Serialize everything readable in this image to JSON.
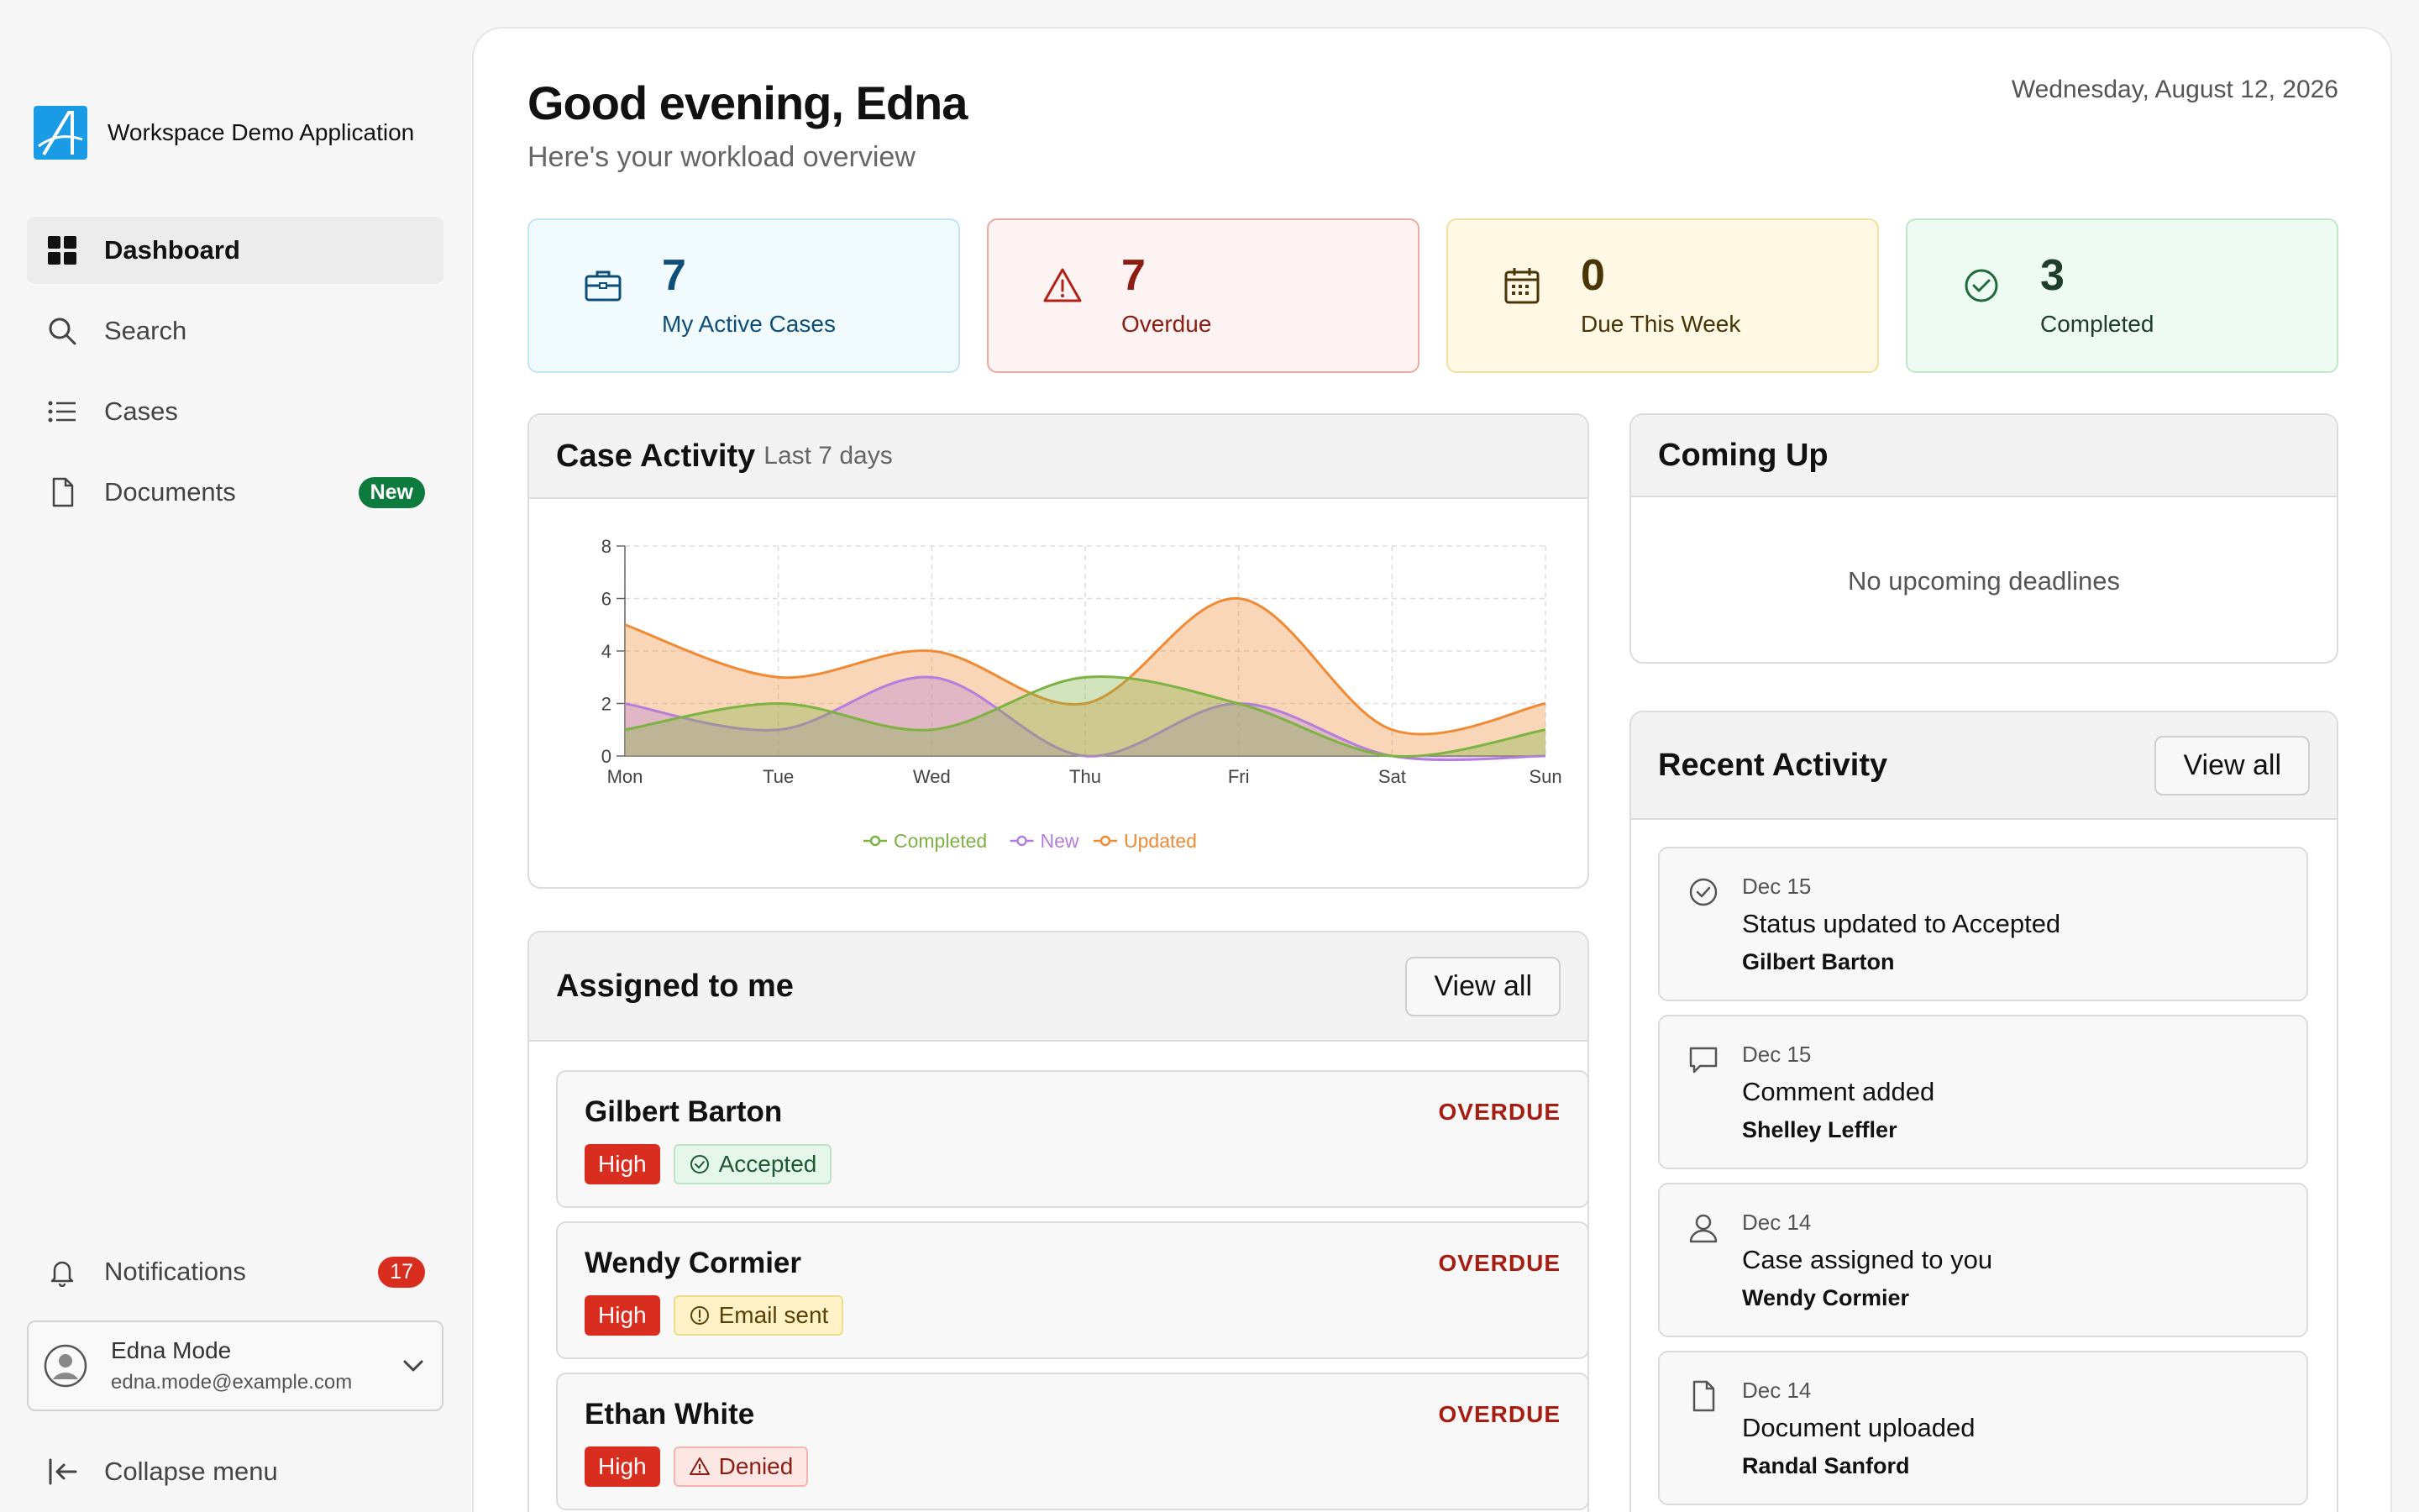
{
  "brand": {
    "name": "Workspace Demo Application"
  },
  "nav": [
    {
      "label": "Dashboard",
      "icon": "dashboard-icon"
    },
    {
      "label": "Search",
      "icon": "search-icon"
    },
    {
      "label": "Cases",
      "icon": "list-icon"
    },
    {
      "label": "Documents",
      "icon": "document-icon",
      "badge": "New"
    }
  ],
  "notifications": {
    "label": "Notifications",
    "count": "17"
  },
  "user": {
    "name": "Edna Mode",
    "email": "edna.mode@example.com"
  },
  "collapse_label": "Collapse menu",
  "header": {
    "greeting": "Good evening, Edna",
    "subtitle": "Here's your workload overview",
    "date": "Wednesday, August 12, 2026"
  },
  "stats": [
    {
      "value": "7",
      "label": "My Active Cases",
      "icon": "briefcase-icon"
    },
    {
      "value": "7",
      "label": "Overdue",
      "icon": "warning-icon"
    },
    {
      "value": "0",
      "label": "Due This Week",
      "icon": "calendar-icon"
    },
    {
      "value": "3",
      "label": "Completed",
      "icon": "check-circle-icon"
    }
  ],
  "activity_card": {
    "title": "Case Activity",
    "subtitle": "Last 7 days"
  },
  "chart_data": {
    "type": "area",
    "x": [
      "Mon",
      "Tue",
      "Wed",
      "Thu",
      "Fri",
      "Sat",
      "Sun"
    ],
    "ylim": [
      0,
      8
    ],
    "yticks": [
      0,
      2,
      4,
      6,
      8
    ],
    "grid": true,
    "legend": "bottom",
    "series": [
      {
        "name": "Completed",
        "color": "#7cb342",
        "values": [
          1,
          2,
          1,
          3,
          2,
          0,
          1
        ]
      },
      {
        "name": "New",
        "color": "#b57edc",
        "values": [
          2,
          1,
          3,
          0,
          2,
          0,
          0
        ]
      },
      {
        "name": "Updated",
        "color": "#f08a34",
        "values": [
          5,
          3,
          4,
          2,
          6,
          1,
          2
        ]
      }
    ]
  },
  "coming_up": {
    "title": "Coming Up",
    "empty": "No upcoming deadlines"
  },
  "assigned": {
    "title": "Assigned to me",
    "view_all": "View all",
    "items": [
      {
        "name": "Gilbert Barton",
        "status": "OVERDUE",
        "priority": "High",
        "tag": "Accepted",
        "tag_icon": "check-circle-icon"
      },
      {
        "name": "Wendy Cormier",
        "status": "OVERDUE",
        "priority": "High",
        "tag": "Email sent",
        "tag_icon": "info-icon"
      },
      {
        "name": "Ethan White",
        "status": "OVERDUE",
        "priority": "High",
        "tag": "Denied",
        "tag_icon": "warning-icon"
      }
    ]
  },
  "recent": {
    "title": "Recent Activity",
    "view_all": "View all",
    "items": [
      {
        "date": "Dec 15",
        "text": "Status updated to Accepted",
        "person": "Gilbert Barton",
        "icon": "check-circle-icon"
      },
      {
        "date": "Dec 15",
        "text": "Comment added",
        "person": "Shelley Leffler",
        "icon": "comment-icon"
      },
      {
        "date": "Dec 14",
        "text": "Case assigned to you",
        "person": "Wendy Cormier",
        "icon": "user-icon"
      },
      {
        "date": "Dec 14",
        "text": "Document uploaded",
        "person": "Randal Sanford",
        "icon": "document-icon"
      }
    ]
  }
}
